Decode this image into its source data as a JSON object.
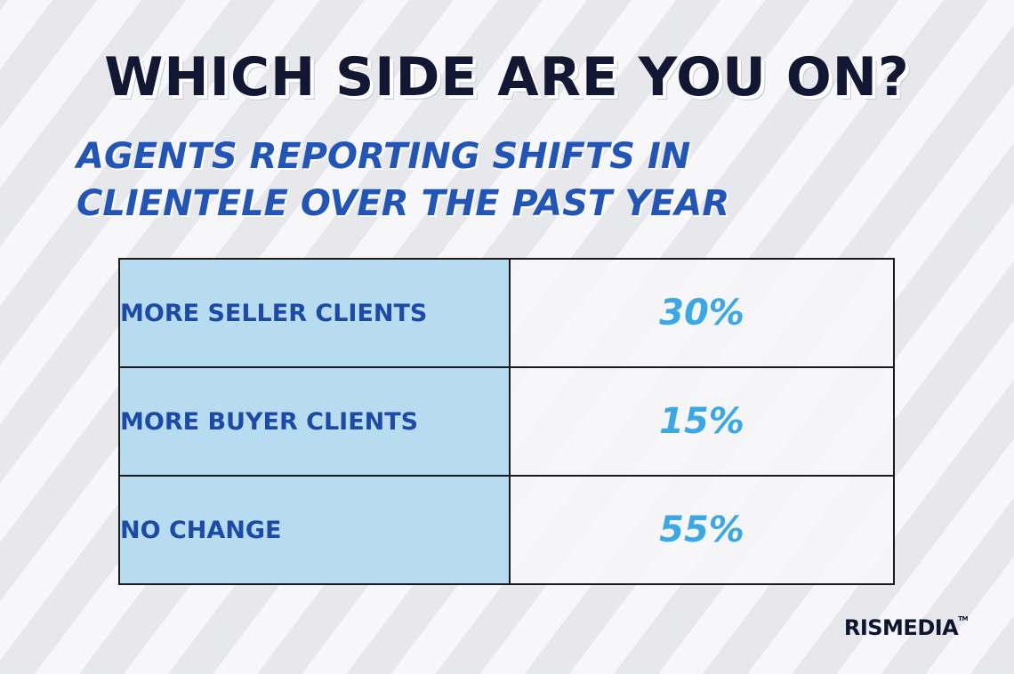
{
  "title": "WHICH SIDE ARE YOU ON?",
  "subtitle": {
    "line1": "AGENTS REPORTING SHIFTS IN",
    "line2": "CLIENTELE OVER THE PAST YEAR"
  },
  "logo": "RISMEDIA",
  "logo_tm": "TM",
  "colors": {
    "title": "#121833",
    "subtitle": "#2255b8",
    "label_bg": "#b8dcef",
    "label_text": "#1b4aa8",
    "value_text": "#3aa8e6"
  },
  "chart_data": {
    "type": "table",
    "title": "WHICH SIDE ARE YOU ON?",
    "subtitle": "AGENTS REPORTING SHIFTS IN CLIENTELE OVER THE PAST YEAR",
    "categories": [
      "MORE SELLER CLIENTS",
      "MORE BUYER CLIENTS",
      "NO CHANGE"
    ],
    "values": [
      30,
      15,
      55
    ],
    "value_labels": [
      "30%",
      "15%",
      "55%"
    ]
  }
}
